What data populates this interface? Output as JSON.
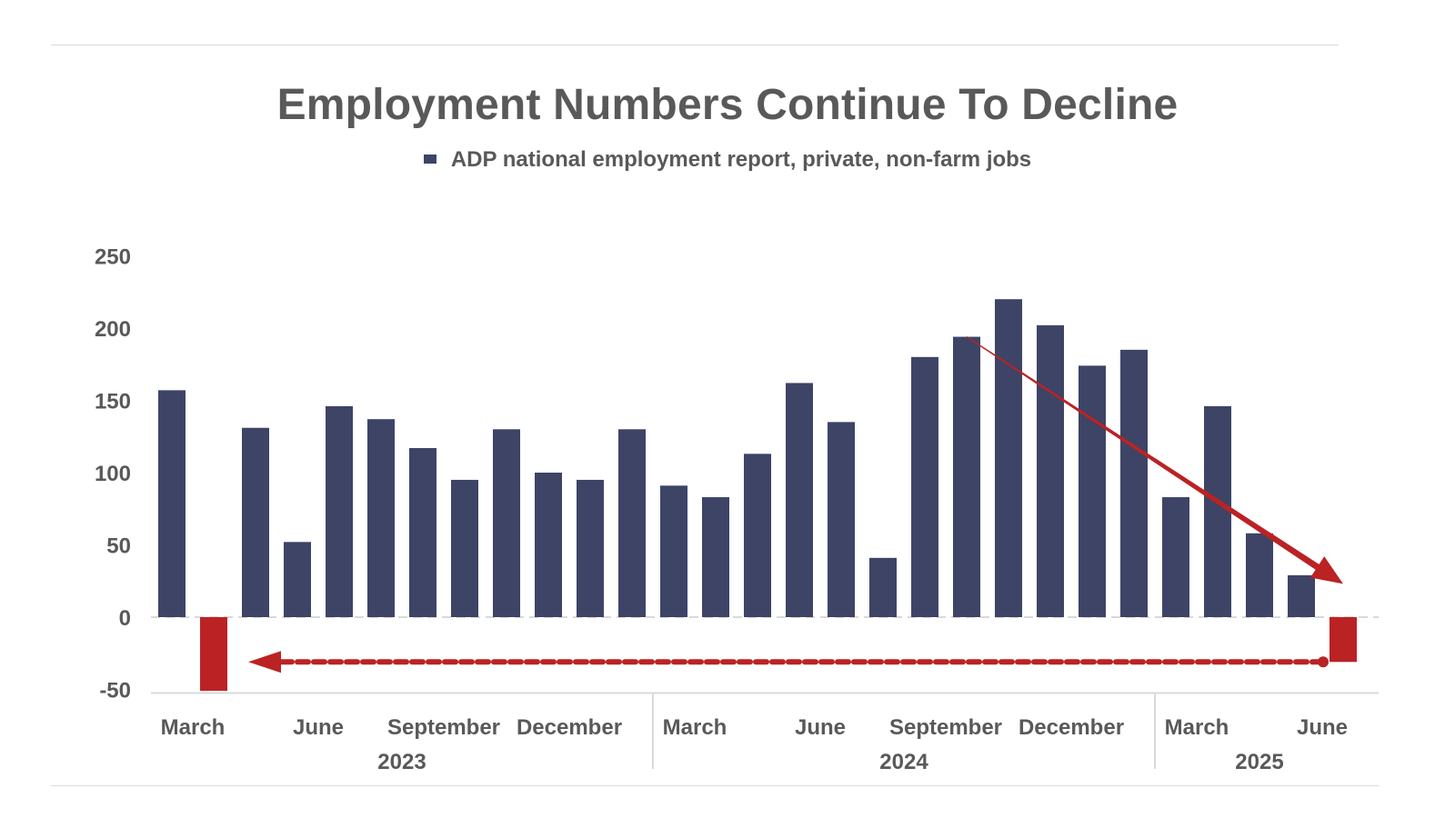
{
  "colors": {
    "bar": "#3d4466",
    "highlight": "#bb2224",
    "text": "#595959",
    "axis": "#d9d9d9"
  },
  "chart_data": {
    "type": "bar",
    "title": "Employment Numbers Continue To Decline",
    "legend": [
      "ADP national employment report, private, non-farm jobs"
    ],
    "legend_position": "top",
    "ylim": [
      -50,
      250
    ],
    "yticks": [
      250,
      200,
      150,
      100,
      50,
      0,
      -50
    ],
    "grid": false,
    "series": [
      {
        "name": "ADP national employment report, private, non-farm jobs",
        "values": [
          157,
          -51,
          131,
          52,
          146,
          137,
          117,
          95,
          130,
          100,
          95,
          130,
          91,
          83,
          113,
          162,
          135,
          41,
          180,
          194,
          220,
          202,
          174,
          185,
          83,
          146,
          58,
          29,
          -31
        ]
      }
    ],
    "highlighted_indices": [
      1,
      28
    ],
    "month_labels": [
      {
        "label": "March",
        "index": 0
      },
      {
        "label": "June",
        "index": 3
      },
      {
        "label": "September",
        "index": 6
      },
      {
        "label": "December",
        "index": 9
      },
      {
        "label": "March",
        "index": 12
      },
      {
        "label": "June",
        "index": 15
      },
      {
        "label": "September",
        "index": 18
      },
      {
        "label": "December",
        "index": 21
      },
      {
        "label": "March",
        "index": 24
      },
      {
        "label": "June",
        "index": 27
      }
    ],
    "year_labels": [
      {
        "label": "2023",
        "start": 0,
        "end": 11
      },
      {
        "label": "2024",
        "start": 12,
        "end": 23
      },
      {
        "label": "2025",
        "start": 24,
        "end": 28
      }
    ],
    "annotations": [
      {
        "type": "arrow",
        "style": "solid",
        "from_index": 19,
        "from_value": 194,
        "to_index": 28,
        "to_value": 23
      },
      {
        "type": "arrow",
        "style": "dashed",
        "from_index": 28,
        "from_value": -31,
        "to_index": 1,
        "to_value": -31
      }
    ]
  }
}
